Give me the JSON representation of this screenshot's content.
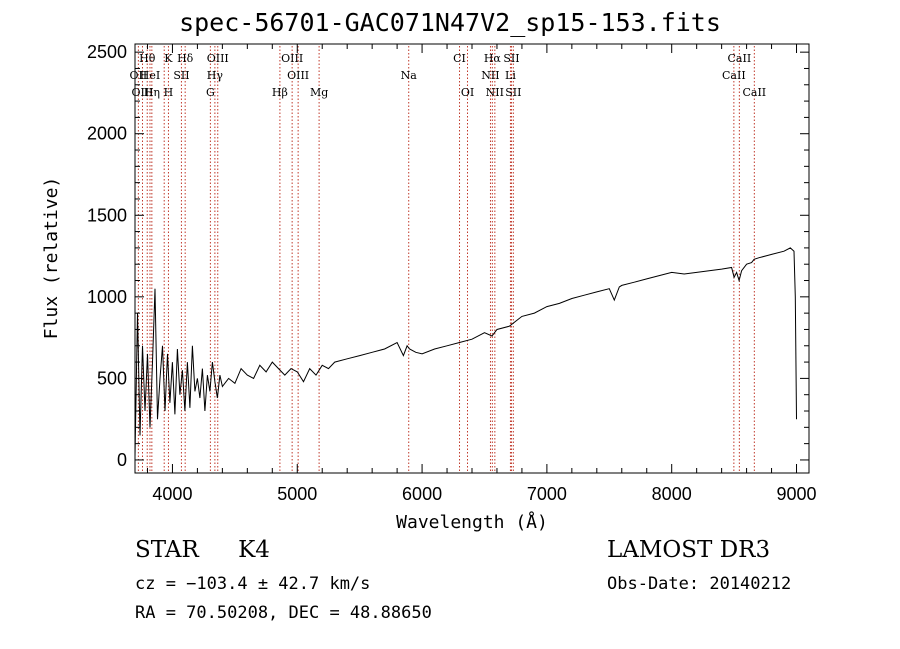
{
  "header": {
    "title": "spec-56701-GAC071N47V2_sp15-153.fits"
  },
  "info": {
    "class": "STAR",
    "subclass": "K4",
    "survey": "LAMOST DR3",
    "redshift_text": "cz = −103.4 ± 42.7 km/s",
    "obs_date_text": "Obs-Date: 20140212",
    "radec_text": "RA =  70.50208, DEC =  48.88650"
  },
  "colors": {
    "line_marker": "#c0392b",
    "spectrum": "#000000"
  },
  "chart_data": {
    "type": "line",
    "title": "spec-56701-GAC071N47V2_sp15-153.fits",
    "xlabel": "Wavelength (Å)",
    "ylabel": "Flux (relative)",
    "xlim": [
      3700,
      9100
    ],
    "ylim": [
      -80,
      2550
    ],
    "xticks": [
      4000,
      5000,
      6000,
      7000,
      8000,
      9000
    ],
    "xtick_labels": [
      "4000",
      "5000",
      "6000",
      "7000",
      "8000",
      "9000"
    ],
    "yticks": [
      0,
      500,
      1000,
      1500,
      2000,
      2500
    ],
    "ytick_labels": [
      "0",
      "500",
      "1000",
      "1500",
      "2000",
      "2500"
    ],
    "spectrum": {
      "x": [
        3700,
        3720,
        3740,
        3760,
        3780,
        3800,
        3820,
        3840,
        3860,
        3880,
        3900,
        3920,
        3940,
        3960,
        3980,
        4000,
        4020,
        4040,
        4060,
        4080,
        4100,
        4120,
        4140,
        4160,
        4180,
        4200,
        4220,
        4240,
        4260,
        4280,
        4300,
        4320,
        4340,
        4360,
        4380,
        4400,
        4450,
        4500,
        4550,
        4600,
        4650,
        4700,
        4750,
        4800,
        4850,
        4900,
        4950,
        5000,
        5050,
        5100,
        5150,
        5200,
        5250,
        5300,
        5400,
        5500,
        5600,
        5700,
        5800,
        5850,
        5880,
        5900,
        5950,
        6000,
        6100,
        6200,
        6300,
        6400,
        6500,
        6560,
        6600,
        6700,
        6800,
        6900,
        7000,
        7100,
        7200,
        7300,
        7400,
        7500,
        7540,
        7580,
        7600,
        7700,
        7800,
        7900,
        8000,
        8100,
        8200,
        8300,
        8400,
        8480,
        8500,
        8520,
        8540,
        8560,
        8600,
        8640,
        8660,
        8700,
        8800,
        8900,
        8950,
        8980,
        8990,
        9000
      ],
      "y": [
        20,
        900,
        150,
        700,
        300,
        650,
        200,
        600,
        1050,
        250,
        500,
        700,
        300,
        650,
        350,
        600,
        280,
        680,
        400,
        550,
        300,
        600,
        320,
        700,
        420,
        500,
        380,
        560,
        300,
        520,
        420,
        600,
        480,
        380,
        520,
        450,
        500,
        470,
        560,
        520,
        500,
        580,
        540,
        600,
        560,
        520,
        560,
        540,
        480,
        560,
        520,
        580,
        560,
        600,
        620,
        640,
        660,
        680,
        720,
        640,
        700,
        680,
        660,
        650,
        680,
        700,
        720,
        740,
        780,
        760,
        800,
        820,
        880,
        900,
        940,
        960,
        990,
        1010,
        1030,
        1050,
        980,
        1060,
        1070,
        1090,
        1110,
        1130,
        1150,
        1140,
        1150,
        1160,
        1170,
        1180,
        1120,
        1150,
        1100,
        1160,
        1200,
        1210,
        1230,
        1240,
        1260,
        1280,
        1300,
        1280,
        1000,
        250
      ]
    },
    "lines": [
      {
        "label": "Hθ",
        "wave": 3798,
        "row": 0,
        "anchor": "middle"
      },
      {
        "label": "K",
        "wave": 3934,
        "row": 0,
        "anchor": "start"
      },
      {
        "label": "Hδ",
        "wave": 4102,
        "row": 0,
        "anchor": "middle"
      },
      {
        "label": "OIII",
        "wave": 4363,
        "row": 0,
        "anchor": "middle"
      },
      {
        "label": "OIII",
        "wave": 4959,
        "row": 0,
        "anchor": "middle"
      },
      {
        "label": "CI",
        "wave": 6300,
        "row": 0,
        "anchor": "middle"
      },
      {
        "label": "Hα",
        "wave": 6563,
        "row": 0,
        "anchor": "middle"
      },
      {
        "label": "SII",
        "wave": 6716,
        "row": 0,
        "anchor": "middle"
      },
      {
        "label": "CaII",
        "wave": 8542,
        "row": 0,
        "anchor": "middle"
      },
      {
        "label": "OII",
        "wave": 3727,
        "row": 1,
        "anchor": "middle"
      },
      {
        "label": "HeI",
        "wave": 3820,
        "row": 1,
        "anchor": "middle"
      },
      {
        "label": "SII",
        "wave": 4072,
        "row": 1,
        "anchor": "middle"
      },
      {
        "label": "Hγ",
        "wave": 4340,
        "row": 1,
        "anchor": "middle"
      },
      {
        "label": "OIII",
        "wave": 5007,
        "row": 1,
        "anchor": "middle"
      },
      {
        "label": "Na",
        "wave": 5893,
        "row": 1,
        "anchor": "middle"
      },
      {
        "label": "NII",
        "wave": 6548,
        "row": 1,
        "anchor": "middle"
      },
      {
        "label": "Li",
        "wave": 6708,
        "row": 1,
        "anchor": "middle"
      },
      {
        "label": "CaII",
        "wave": 8498,
        "row": 1,
        "anchor": "middle"
      },
      {
        "label": "OIII",
        "wave": 3760,
        "row": 2,
        "anchor": "middle"
      },
      {
        "label": "Hη",
        "wave": 3835,
        "row": 2,
        "anchor": "middle"
      },
      {
        "label": "H",
        "wave": 3968,
        "row": 2,
        "anchor": "middle"
      },
      {
        "label": "G",
        "wave": 4304,
        "row": 2,
        "anchor": "middle"
      },
      {
        "label": "Hβ",
        "wave": 4861,
        "row": 2,
        "anchor": "middle"
      },
      {
        "label": "Mg",
        "wave": 5175,
        "row": 2,
        "anchor": "middle"
      },
      {
        "label": "OI",
        "wave": 6364,
        "row": 2,
        "anchor": "middle"
      },
      {
        "label": "NII",
        "wave": 6583,
        "row": 2,
        "anchor": "middle"
      },
      {
        "label": "SII",
        "wave": 6731,
        "row": 2,
        "anchor": "middle"
      },
      {
        "label": "CaII",
        "wave": 8662,
        "row": 2,
        "anchor": "middle"
      }
    ]
  }
}
